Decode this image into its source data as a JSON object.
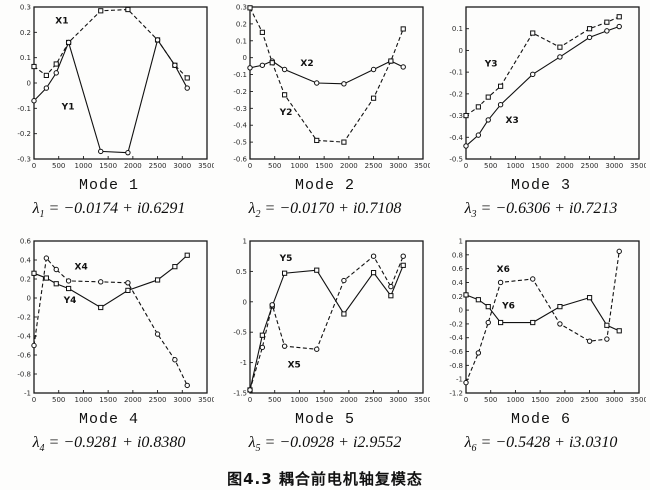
{
  "caption": "图4.3 耦合前电机轴复模态",
  "ink_color": "#1a1a1a",
  "background_color": "#fdfdfc",
  "chart_data": [
    {
      "type": "line",
      "title": "Mode 1",
      "lambda": {
        "base": "λ",
        "sub": "1",
        "rhs": "= −0.0174 + i0.6291"
      },
      "xlim": [
        0,
        3500
      ],
      "ylim": [
        -0.3,
        0.3
      ],
      "x": [
        0,
        250,
        450,
        700,
        1350,
        1900,
        2500,
        2850,
        3100
      ],
      "xticks": [
        0,
        500,
        1000,
        1500,
        2000,
        2500,
        3000,
        3500
      ],
      "xtick_labels": [
        "0",
        "500",
        "1000",
        "1500",
        "2000",
        "2500",
        "3000",
        "3500"
      ],
      "yticks": [
        0.3,
        0.2,
        0.1,
        0,
        -0.1,
        -0.2,
        -0.3
      ],
      "ytick_labels": [
        "0.3",
        "0.2",
        "0.1",
        "0",
        "-0.1",
        "-0.2",
        "-0.3"
      ],
      "series": [
        {
          "name": "X1",
          "marker": "square",
          "dash": true,
          "values": [
            0.065,
            0.03,
            0.075,
            0.16,
            0.285,
            0.29,
            0.17,
            0.07,
            0.02
          ],
          "label_at": [
            430,
            0.235
          ]
        },
        {
          "name": "Y1",
          "marker": "circle",
          "dash": false,
          "values": [
            -0.07,
            -0.02,
            0.04,
            0.16,
            -0.27,
            -0.275,
            0.17,
            0.07,
            -0.02
          ],
          "label_at": [
            560,
            -0.105
          ]
        }
      ]
    },
    {
      "type": "line",
      "title": "Mode 2",
      "lambda": {
        "base": "λ",
        "sub": "2",
        "rhs": "= −0.0170 + i0.7108"
      },
      "xlim": [
        0,
        3500
      ],
      "ylim": [
        -0.6,
        0.3
      ],
      "x": [
        0,
        250,
        450,
        700,
        1350,
        1900,
        2500,
        2850,
        3100
      ],
      "xticks": [
        0,
        500,
        1000,
        1500,
        2000,
        2500,
        3000,
        3500
      ],
      "xtick_labels": [
        "0",
        "500",
        "1000",
        "1500",
        "2000",
        "2500",
        "3000",
        "3500"
      ],
      "yticks": [
        0.3,
        0.2,
        0.1,
        0,
        -0.1,
        -0.2,
        -0.3,
        -0.4,
        -0.5,
        -0.6
      ],
      "ytick_labels": [
        "0.3",
        "0.2",
        "0.1",
        "0",
        "-0.1",
        "-0.2",
        "-0.3",
        "-0.4",
        "-0.5",
        "-0.6"
      ],
      "series": [
        {
          "name": "X2",
          "marker": "circle",
          "dash": false,
          "values": [
            -0.06,
            -0.045,
            -0.02,
            -0.07,
            -0.15,
            -0.155,
            -0.07,
            -0.02,
            -0.055
          ],
          "label_at": [
            1020,
            -0.05
          ]
        },
        {
          "name": "Y2",
          "marker": "square",
          "dash": true,
          "values": [
            0.295,
            0.15,
            -0.03,
            -0.22,
            -0.49,
            -0.5,
            -0.24,
            -0.02,
            0.17
          ],
          "label_at": [
            600,
            -0.34
          ]
        }
      ]
    },
    {
      "type": "line",
      "title": "Mode 3",
      "lambda": {
        "base": "λ",
        "sub": "3",
        "rhs": "= −0.6306 + i0.7213"
      },
      "xlim": [
        0,
        3500
      ],
      "ylim": [
        -0.5,
        0.2
      ],
      "x": [
        0,
        250,
        450,
        700,
        1350,
        1900,
        2500,
        2850,
        3100
      ],
      "xticks": [
        0,
        500,
        1000,
        1500,
        2000,
        2500,
        3000,
        3500
      ],
      "xtick_labels": [
        "0",
        "500",
        "1000",
        "1500",
        "2000",
        "2500",
        "3000",
        "3500"
      ],
      "yticks": [
        0.1,
        0,
        -0.1,
        -0.2,
        -0.3,
        -0.4,
        -0.5
      ],
      "ytick_labels": [
        "0.1",
        "0",
        "-0.1",
        "-0.2",
        "-0.3",
        "-0.4",
        "-0.5"
      ],
      "series": [
        {
          "name": "Y3",
          "marker": "square",
          "dash": true,
          "values": [
            -0.3,
            -0.26,
            -0.215,
            -0.165,
            0.08,
            0.015,
            0.1,
            0.13,
            0.155
          ],
          "label_at": [
            380,
            -0.075
          ]
        },
        {
          "name": "X3",
          "marker": "circle",
          "dash": false,
          "values": [
            -0.44,
            -0.39,
            -0.32,
            -0.25,
            -0.11,
            -0.03,
            0.06,
            0.09,
            0.11
          ],
          "label_at": [
            800,
            -0.335
          ]
        }
      ]
    },
    {
      "type": "line",
      "title": "Mode 4",
      "lambda": {
        "base": "λ",
        "sub": "4",
        "rhs": "= −0.9281 + i0.8380"
      },
      "xlim": [
        0,
        3500
      ],
      "ylim": [
        -1,
        0.6
      ],
      "x": [
        0,
        250,
        450,
        700,
        1350,
        1900,
        2500,
        2850,
        3100
      ],
      "xticks": [
        0,
        500,
        1000,
        1500,
        2000,
        2500,
        3000,
        3500
      ],
      "xtick_labels": [
        "0",
        "500",
        "1000",
        "1500",
        "2000",
        "2500",
        "3000",
        "3500"
      ],
      "yticks": [
        0.6,
        0.4,
        0.2,
        0,
        -0.2,
        -0.4,
        -0.6,
        -0.8,
        -1
      ],
      "ytick_labels": [
        "0.6",
        "0.4",
        "0.2",
        "0",
        "-0.2",
        "-0.4",
        "-0.6",
        "-0.8",
        "-1"
      ],
      "series": [
        {
          "name": "X4",
          "marker": "circle",
          "dash": true,
          "values": [
            -0.5,
            0.42,
            0.3,
            0.18,
            0.17,
            0.16,
            -0.38,
            -0.65,
            -0.92
          ],
          "label_at": [
            820,
            0.3
          ]
        },
        {
          "name": "Y4",
          "marker": "square",
          "dash": false,
          "values": [
            0.26,
            0.21,
            0.15,
            0.1,
            -0.1,
            0.08,
            0.19,
            0.33,
            0.45
          ],
          "label_at": [
            600,
            -0.05
          ]
        }
      ]
    },
    {
      "type": "line",
      "title": "Mode 5",
      "lambda": {
        "base": "λ",
        "sub": "5",
        "rhs": "= −0.0928 + i2.9552"
      },
      "xlim": [
        0,
        3500
      ],
      "ylim": [
        -1.5,
        1
      ],
      "x": [
        0,
        250,
        450,
        700,
        1350,
        1900,
        2500,
        2850,
        3100
      ],
      "xticks": [
        0,
        500,
        1000,
        1500,
        2000,
        2500,
        3000,
        3500
      ],
      "xtick_labels": [
        "0",
        "500",
        "1000",
        "1500",
        "2000",
        "2500",
        "3000",
        "3500"
      ],
      "yticks": [
        1,
        0.5,
        0,
        -0.5,
        -1,
        -1.5
      ],
      "ytick_labels": [
        "1",
        "0.5",
        "0",
        "-0.5",
        "-1",
        "-1.5"
      ],
      "series": [
        {
          "name": "Y5",
          "marker": "square",
          "dash": false,
          "values": [
            -1.45,
            -0.55,
            -0.07,
            0.47,
            0.52,
            -0.2,
            0.48,
            0.1,
            0.6
          ],
          "label_at": [
            600,
            0.67
          ]
        },
        {
          "name": "X5",
          "marker": "circle",
          "dash": true,
          "values": [
            -1.45,
            -0.75,
            -0.05,
            -0.73,
            -0.78,
            0.35,
            0.75,
            0.25,
            0.75
          ],
          "label_at": [
            760,
            -1.08
          ]
        }
      ]
    },
    {
      "type": "line",
      "title": "Mode 6",
      "lambda": {
        "base": "λ",
        "sub": "6",
        "rhs": "= −0.5428 + i3.0310"
      },
      "xlim": [
        0,
        3500
      ],
      "ylim": [
        -1.2,
        1
      ],
      "x": [
        0,
        250,
        450,
        700,
        1350,
        1900,
        2500,
        2850,
        3100
      ],
      "xticks": [
        0,
        500,
        1000,
        1500,
        2000,
        2500,
        3000,
        3500
      ],
      "xtick_labels": [
        "0",
        "500",
        "1000",
        "1500",
        "2000",
        "2500",
        "3000",
        "3500"
      ],
      "yticks": [
        1,
        0.8,
        0.6,
        0.4,
        0.2,
        0,
        -0.2,
        -0.4,
        -0.6,
        -0.8,
        -1,
        -1.2
      ],
      "ytick_labels": [
        "1",
        "0.8",
        "0.6",
        "0.4",
        "0.2",
        "0",
        "-0.2",
        "-0.4",
        "-0.6",
        "-0.8",
        "-1",
        "-1.2"
      ],
      "series": [
        {
          "name": "X6",
          "marker": "circle",
          "dash": true,
          "values": [
            -1.05,
            -0.62,
            -0.18,
            0.4,
            0.45,
            -0.2,
            -0.45,
            -0.42,
            0.85
          ],
          "label_at": [
            620,
            0.55
          ]
        },
        {
          "name": "Y6",
          "marker": "square",
          "dash": false,
          "values": [
            0.22,
            0.15,
            0.05,
            -0.18,
            -0.18,
            0.05,
            0.18,
            -0.22,
            -0.3
          ],
          "label_at": [
            730,
            0.02
          ]
        }
      ]
    }
  ]
}
